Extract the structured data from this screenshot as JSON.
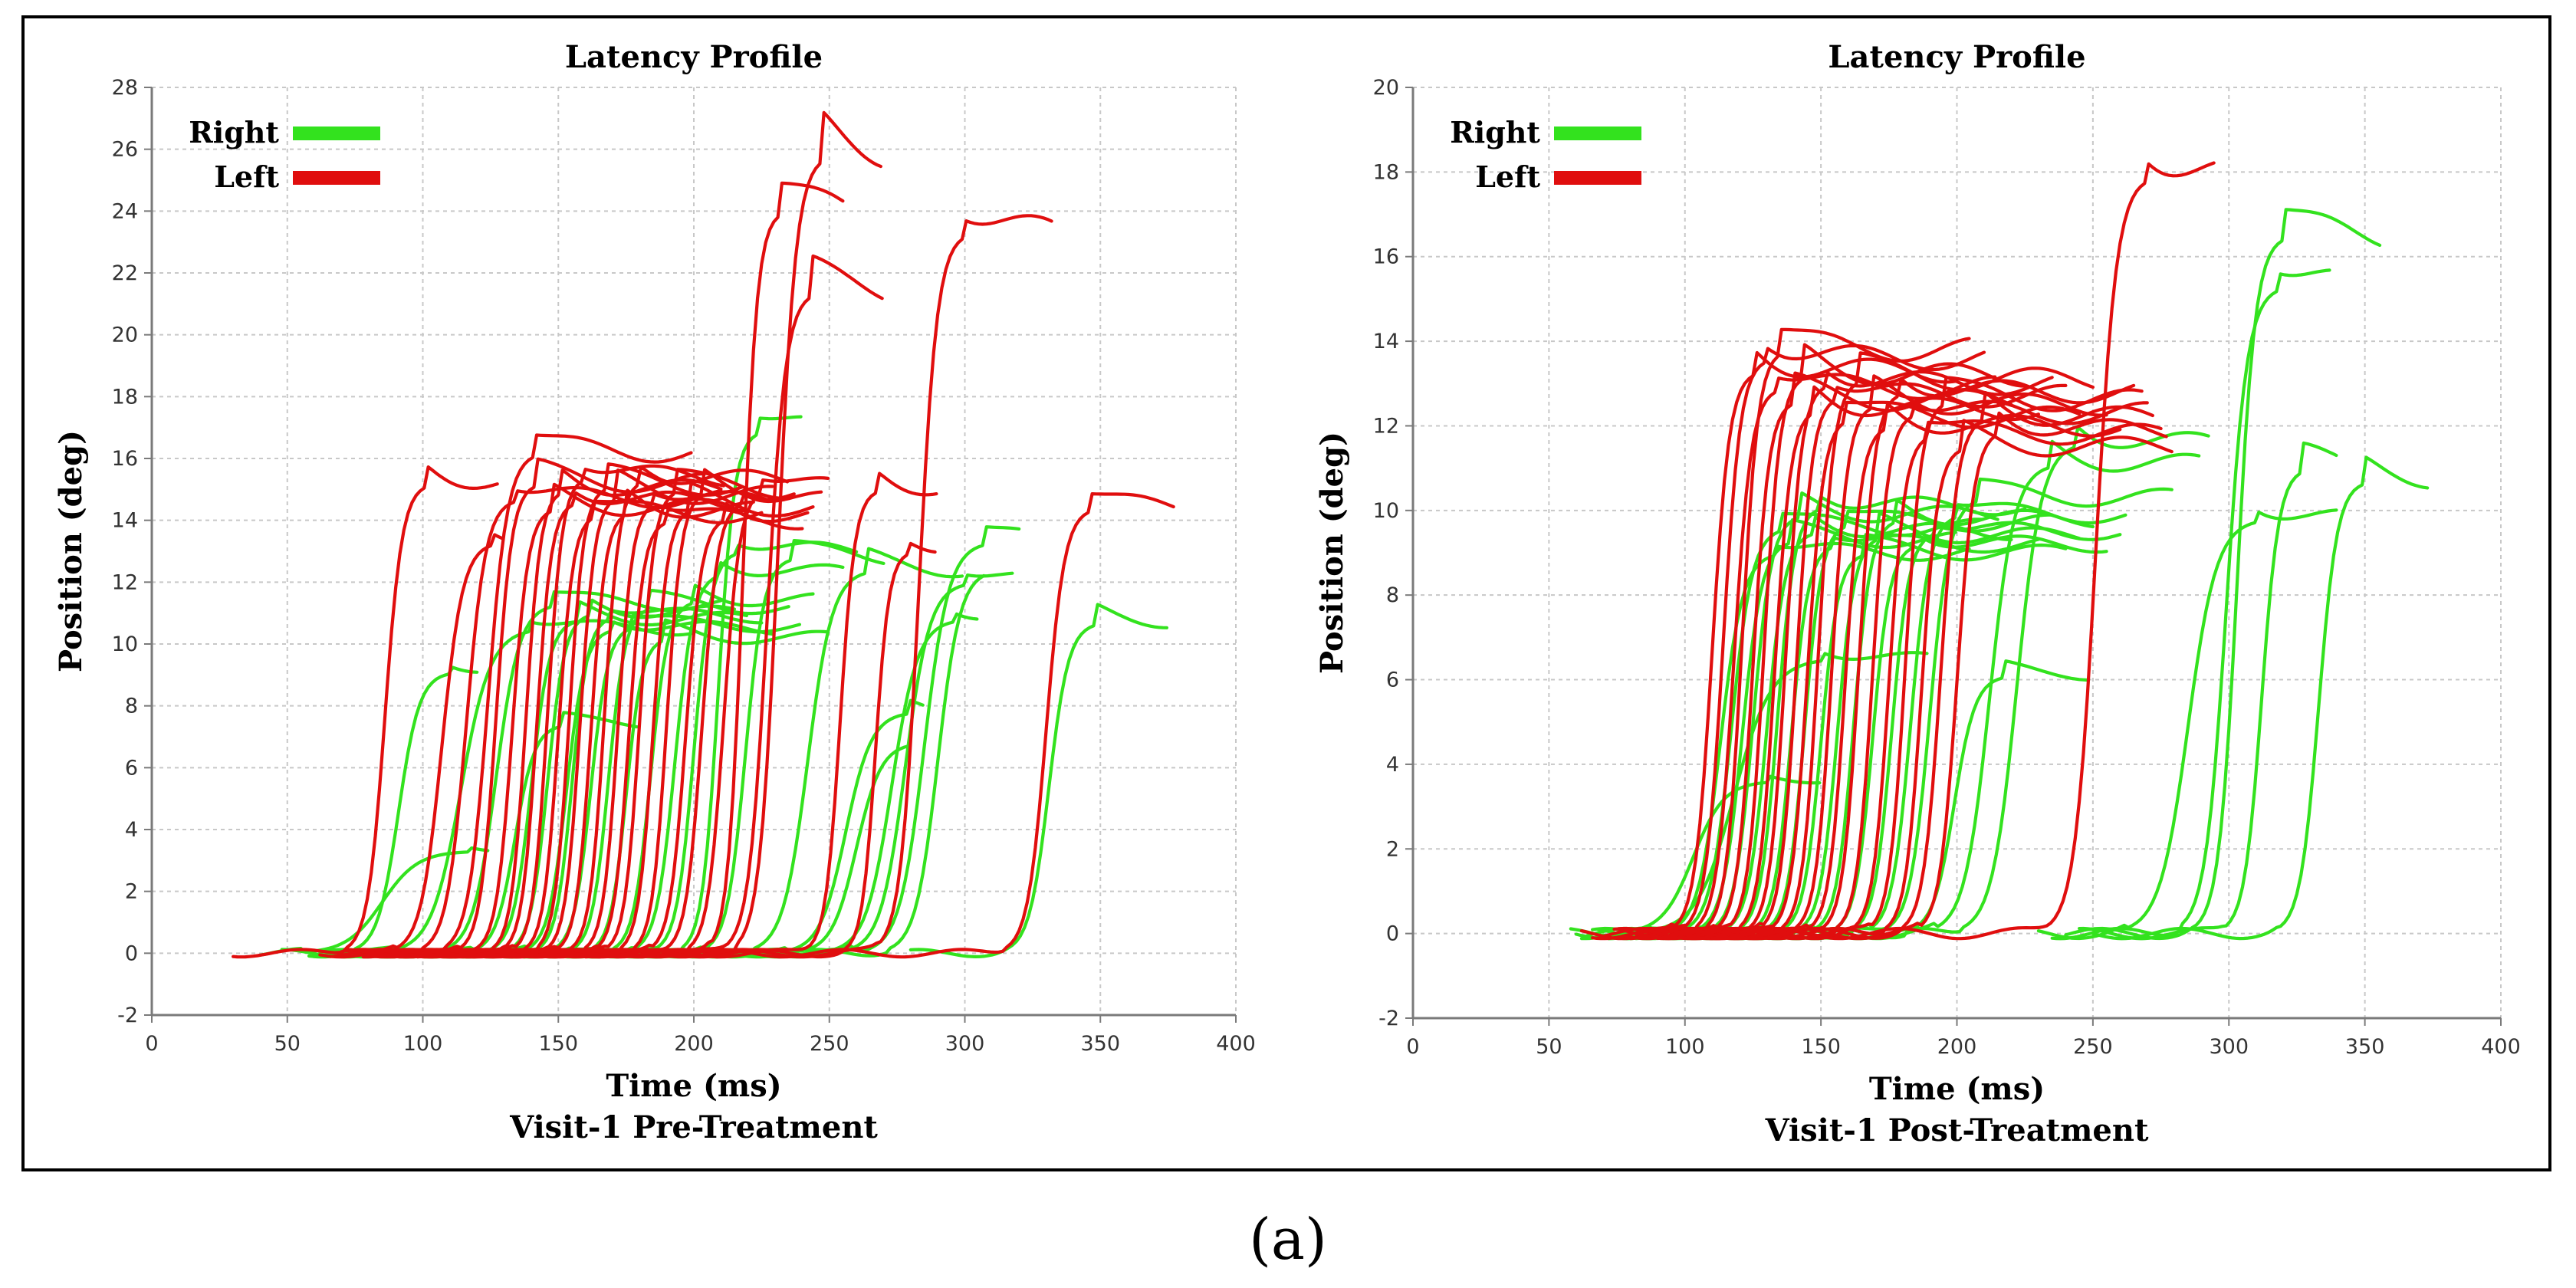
{
  "figure": {
    "caption": "(a)"
  },
  "colors": {
    "right": "#33e21e",
    "left": "#e00e0e",
    "grid": "#c8c8c8",
    "axis": "#7a7a7a"
  },
  "chart_data": [
    {
      "type": "line",
      "title": "Latency Profile",
      "xlabel": "Time (ms)",
      "subtitle": "Visit-1 Pre-Treatment",
      "ylabel": "Position (deg)",
      "xlim": [
        0,
        400
      ],
      "ylim": [
        -2,
        28
      ],
      "xticks": [
        0,
        50,
        100,
        150,
        200,
        250,
        300,
        350,
        400
      ],
      "yticks": [
        -2,
        0,
        2,
        4,
        6,
        8,
        10,
        12,
        14,
        16,
        18,
        20,
        22,
        24,
        26,
        28
      ],
      "grid": true,
      "legend": {
        "position": "top-left",
        "entries": [
          {
            "label": "Right",
            "color": "#33e21e"
          },
          {
            "label": "Left",
            "color": "#e00e0e"
          }
        ]
      },
      "series": [
        {
          "name": "Right",
          "color": "#33e21e",
          "traces": [
            {
              "start": 40,
              "onset": 56,
              "rise": 58,
              "amp": 3.3,
              "end": 125
            },
            {
              "start": 48,
              "onset": 74,
              "rise": 34,
              "amp": 9.1,
              "end": 120
            },
            {
              "start": 58,
              "onset": 90,
              "rise": 48,
              "amp": 10.5,
              "end": 200
            },
            {
              "start": 60,
              "onset": 108,
              "rise": 38,
              "amp": 11.3,
              "end": 210
            },
            {
              "start": 62,
              "onset": 118,
              "rise": 32,
              "amp": 7.4,
              "end": 180
            },
            {
              "start": 65,
              "onset": 125,
              "rise": 30,
              "amp": 10.8,
              "end": 220
            },
            {
              "start": 68,
              "onset": 132,
              "rise": 28,
              "amp": 11.0,
              "end": 215
            },
            {
              "start": 70,
              "onset": 138,
              "rise": 30,
              "amp": 10.5,
              "end": 230
            },
            {
              "start": 72,
              "onset": 142,
              "rise": 26,
              "amp": 10.9,
              "end": 225
            },
            {
              "start": 74,
              "onset": 148,
              "rise": 28,
              "amp": 10.6,
              "end": 240
            },
            {
              "start": 76,
              "onset": 155,
              "rise": 27,
              "amp": 11.2,
              "end": 235
            },
            {
              "start": 80,
              "onset": 162,
              "rise": 26,
              "amp": 10.2,
              "end": 250
            },
            {
              "start": 85,
              "onset": 170,
              "rise": 28,
              "amp": 11.4,
              "end": 245
            },
            {
              "start": 90,
              "onset": 178,
              "rise": 30,
              "amp": 12.3,
              "end": 255
            },
            {
              "start": 95,
              "onset": 186,
              "rise": 28,
              "amp": 13.0,
              "end": 260
            },
            {
              "start": 100,
              "onset": 196,
              "rise": 26,
              "amp": 16.9,
              "end": 240
            },
            {
              "start": 105,
              "onset": 204,
              "rise": 30,
              "amp": 12.8,
              "end": 270
            },
            {
              "start": 110,
              "onset": 222,
              "rise": 40,
              "amp": 12.4,
              "end": 300
            },
            {
              "start": 130,
              "onset": 235,
              "rise": 42,
              "amp": 7.8,
              "end": 285
            },
            {
              "start": 135,
              "onset": 240,
              "rise": 40,
              "amp": 6.8,
              "end": 280
            },
            {
              "start": 150,
              "onset": 252,
              "rise": 42,
              "amp": 10.8,
              "end": 305
            },
            {
              "start": 160,
              "onset": 258,
              "rise": 40,
              "amp": 12.0,
              "end": 318
            },
            {
              "start": 170,
              "onset": 265,
              "rise": 40,
              "amp": 13.3,
              "end": 320
            },
            {
              "start": 175,
              "onset": 272,
              "rise": 36,
              "amp": 12.4,
              "end": 308
            },
            {
              "start": 280,
              "onset": 315,
              "rise": 32,
              "amp": 10.7,
              "end": 375
            }
          ]
        },
        {
          "name": "Left",
          "color": "#e00e0e",
          "traces": [
            {
              "start": 30,
              "onset": 72,
              "rise": 28,
              "amp": 15.2,
              "end": 128
            },
            {
              "start": 62,
              "onset": 90,
              "rise": 34,
              "amp": 13.3,
              "end": 130
            },
            {
              "start": 66,
              "onset": 100,
              "rise": 32,
              "amp": 14.7,
              "end": 210
            },
            {
              "start": 70,
              "onset": 108,
              "rise": 32,
              "amp": 16.2,
              "end": 200
            },
            {
              "start": 72,
              "onset": 114,
              "rise": 26,
              "amp": 15.2,
              "end": 205
            },
            {
              "start": 75,
              "onset": 120,
              "rise": 26,
              "amp": 14.4,
              "end": 215
            },
            {
              "start": 78,
              "onset": 126,
              "rise": 24,
              "amp": 15.0,
              "end": 210
            },
            {
              "start": 80,
              "onset": 130,
              "rise": 24,
              "amp": 14.6,
              "end": 220
            },
            {
              "start": 82,
              "onset": 134,
              "rise": 24,
              "amp": 15.4,
              "end": 212
            },
            {
              "start": 84,
              "onset": 138,
              "rise": 24,
              "amp": 14.2,
              "end": 225
            },
            {
              "start": 86,
              "onset": 142,
              "rise": 24,
              "amp": 15.1,
              "end": 218
            },
            {
              "start": 88,
              "onset": 146,
              "rise": 24,
              "amp": 14.8,
              "end": 230
            },
            {
              "start": 90,
              "onset": 150,
              "rise": 24,
              "amp": 14.3,
              "end": 222
            },
            {
              "start": 92,
              "onset": 155,
              "rise": 24,
              "amp": 15.3,
              "end": 235
            },
            {
              "start": 94,
              "onset": 160,
              "rise": 24,
              "amp": 14.6,
              "end": 228
            },
            {
              "start": 96,
              "onset": 164,
              "rise": 24,
              "amp": 14.0,
              "end": 240
            },
            {
              "start": 98,
              "onset": 168,
              "rise": 24,
              "amp": 15.0,
              "end": 232
            },
            {
              "start": 100,
              "onset": 173,
              "rise": 24,
              "amp": 14.4,
              "end": 245
            },
            {
              "start": 102,
              "onset": 178,
              "rise": 24,
              "amp": 14.9,
              "end": 238
            },
            {
              "start": 104,
              "onset": 184,
              "rise": 26,
              "amp": 14.1,
              "end": 242
            },
            {
              "start": 106,
              "onset": 190,
              "rise": 26,
              "amp": 14.6,
              "end": 248
            },
            {
              "start": 110,
              "onset": 198,
              "rise": 26,
              "amp": 15.0,
              "end": 250
            },
            {
              "start": 120,
              "onset": 206,
              "rise": 24,
              "amp": 24.0,
              "end": 255
            },
            {
              "start": 130,
              "onset": 212,
              "rise": 30,
              "amp": 21.4,
              "end": 270
            },
            {
              "start": 140,
              "onset": 216,
              "rise": 30,
              "amp": 25.8,
              "end": 270
            },
            {
              "start": 150,
              "onset": 242,
              "rise": 24,
              "amp": 15.0,
              "end": 290
            },
            {
              "start": 160,
              "onset": 256,
              "rise": 22,
              "amp": 13.0,
              "end": 290
            },
            {
              "start": 170,
              "onset": 268,
              "rise": 30,
              "amp": 23.3,
              "end": 332
            },
            {
              "start": 200,
              "onset": 315,
              "rise": 30,
              "amp": 14.4,
              "end": 378
            }
          ]
        }
      ]
    },
    {
      "type": "line",
      "title": "Latency Profile",
      "xlabel": "Time (ms)",
      "subtitle": "Visit-1 Post-Treatment",
      "ylabel": "Position (deg)",
      "xlim": [
        0,
        400
      ],
      "ylim": [
        -2,
        20
      ],
      "xticks": [
        0,
        50,
        100,
        150,
        200,
        250,
        300,
        350,
        400
      ],
      "yticks": [
        -2,
        0,
        2,
        4,
        6,
        8,
        10,
        12,
        14,
        16,
        18,
        20
      ],
      "grid": true,
      "legend": {
        "position": "top-left",
        "entries": [
          {
            "label": "Right",
            "color": "#33e21e"
          },
          {
            "label": "Left",
            "color": "#e00e0e"
          }
        ]
      },
      "series": [
        {
          "name": "Right",
          "color": "#33e21e",
          "traces": [
            {
              "start": 58,
              "onset": 78,
              "rise": 50,
              "amp": 3.6,
              "end": 150
            },
            {
              "start": 60,
              "onset": 88,
              "rise": 60,
              "amp": 6.5,
              "end": 190
            },
            {
              "start": 62,
              "onset": 95,
              "rise": 36,
              "amp": 9.0,
              "end": 205
            },
            {
              "start": 64,
              "onset": 100,
              "rise": 34,
              "amp": 9.6,
              "end": 210
            },
            {
              "start": 66,
              "onset": 105,
              "rise": 32,
              "amp": 9.3,
              "end": 200
            },
            {
              "start": 68,
              "onset": 110,
              "rise": 30,
              "amp": 9.9,
              "end": 215
            },
            {
              "start": 70,
              "onset": 115,
              "rise": 30,
              "amp": 9.5,
              "end": 220
            },
            {
              "start": 72,
              "onset": 120,
              "rise": 28,
              "amp": 10.1,
              "end": 225
            },
            {
              "start": 74,
              "onset": 125,
              "rise": 28,
              "amp": 9.2,
              "end": 230
            },
            {
              "start": 76,
              "onset": 130,
              "rise": 28,
              "amp": 9.7,
              "end": 235
            },
            {
              "start": 78,
              "onset": 136,
              "rise": 28,
              "amp": 9.0,
              "end": 240
            },
            {
              "start": 80,
              "onset": 142,
              "rise": 28,
              "amp": 9.4,
              "end": 245
            },
            {
              "start": 82,
              "onset": 148,
              "rise": 28,
              "amp": 9.8,
              "end": 250
            },
            {
              "start": 84,
              "onset": 155,
              "rise": 28,
              "amp": 9.2,
              "end": 255
            },
            {
              "start": 86,
              "onset": 162,
              "rise": 28,
              "amp": 9.5,
              "end": 260
            },
            {
              "start": 88,
              "onset": 168,
              "rise": 30,
              "amp": 9.9,
              "end": 262
            },
            {
              "start": 90,
              "onset": 174,
              "rise": 32,
              "amp": 10.3,
              "end": 280
            },
            {
              "start": 92,
              "onset": 182,
              "rise": 34,
              "amp": 6.1,
              "end": 248
            },
            {
              "start": 94,
              "onset": 192,
              "rise": 40,
              "amp": 11.1,
              "end": 290
            },
            {
              "start": 96,
              "onset": 202,
              "rise": 40,
              "amp": 11.6,
              "end": 293
            },
            {
              "start": 230,
              "onset": 262,
              "rise": 46,
              "amp": 9.8,
              "end": 340
            },
            {
              "start": 235,
              "onset": 282,
              "rise": 34,
              "amp": 15.3,
              "end": 337
            },
            {
              "start": 240,
              "onset": 288,
              "rise": 30,
              "amp": 16.5,
              "end": 356
            },
            {
              "start": 245,
              "onset": 298,
              "rise": 28,
              "amp": 11.0,
              "end": 340
            },
            {
              "start": 250,
              "onset": 318,
              "rise": 30,
              "amp": 10.7,
              "end": 374
            }
          ]
        },
        {
          "name": "Left",
          "color": "#e00e0e",
          "traces": [
            {
              "start": 62,
              "onset": 96,
              "rise": 28,
              "amp": 13.3,
              "end": 200
            },
            {
              "start": 66,
              "onset": 100,
              "rise": 28,
              "amp": 13.6,
              "end": 210
            },
            {
              "start": 70,
              "onset": 104,
              "rise": 28,
              "amp": 12.9,
              "end": 215
            },
            {
              "start": 74,
              "onset": 108,
              "rise": 26,
              "amp": 13.8,
              "end": 205
            },
            {
              "start": 76,
              "onset": 112,
              "rise": 26,
              "amp": 12.6,
              "end": 220
            },
            {
              "start": 78,
              "onset": 116,
              "rise": 26,
              "amp": 13.2,
              "end": 225
            },
            {
              "start": 80,
              "onset": 120,
              "rise": 26,
              "amp": 12.4,
              "end": 230
            },
            {
              "start": 82,
              "onset": 124,
              "rise": 26,
              "amp": 13.0,
              "end": 235
            },
            {
              "start": 84,
              "onset": 128,
              "rise": 26,
              "amp": 12.7,
              "end": 240
            },
            {
              "start": 86,
              "onset": 132,
              "rise": 26,
              "amp": 12.2,
              "end": 245
            },
            {
              "start": 88,
              "onset": 136,
              "rise": 26,
              "amp": 13.1,
              "end": 250
            },
            {
              "start": 90,
              "onset": 141,
              "rise": 26,
              "amp": 12.5,
              "end": 255
            },
            {
              "start": 92,
              "onset": 146,
              "rise": 26,
              "amp": 12.0,
              "end": 260
            },
            {
              "start": 94,
              "onset": 151,
              "rise": 26,
              "amp": 12.8,
              "end": 265
            },
            {
              "start": 96,
              "onset": 156,
              "rise": 26,
              "amp": 12.3,
              "end": 270
            },
            {
              "start": 98,
              "onset": 162,
              "rise": 26,
              "amp": 11.8,
              "end": 275
            },
            {
              "start": 100,
              "onset": 168,
              "rise": 26,
              "amp": 12.6,
              "end": 268
            },
            {
              "start": 102,
              "onset": 174,
              "rise": 26,
              "amp": 11.5,
              "end": 280
            },
            {
              "start": 104,
              "onset": 180,
              "rise": 28,
              "amp": 12.2,
              "end": 272
            },
            {
              "start": 106,
              "onset": 186,
              "rise": 28,
              "amp": 11.9,
              "end": 278
            },
            {
              "start": 110,
              "onset": 234,
              "rise": 34,
              "amp": 17.9,
              "end": 295
            }
          ]
        }
      ]
    }
  ]
}
